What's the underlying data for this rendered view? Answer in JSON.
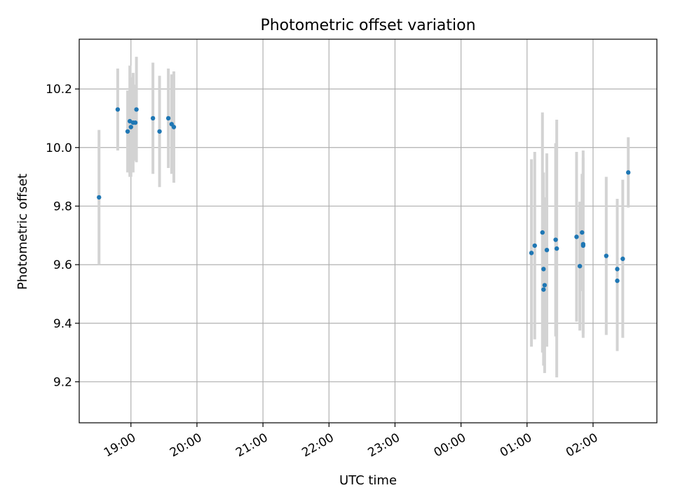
{
  "chart_data": {
    "type": "scatter",
    "title": "Photometric offset variation",
    "xlabel": "UTC time",
    "ylabel": "Photometric offset",
    "xlim": [
      "18:13",
      "02:58"
    ],
    "ylim": [
      9.06,
      10.37
    ],
    "x_ticks": [
      "19:00",
      "20:00",
      "21:00",
      "22:00",
      "23:00",
      "00:00",
      "01:00",
      "02:00"
    ],
    "y_ticks": [
      9.2,
      9.4,
      9.6,
      9.8,
      10.0,
      10.2
    ],
    "grid": true,
    "colors": {
      "point": "#1f77b4",
      "errorbar": "#d3d3d3",
      "grid": "#b0b0b0"
    },
    "series": [
      {
        "points": [
          {
            "x": "18:31",
            "y": 9.83,
            "err": 0.23
          },
          {
            "x": "18:48",
            "y": 10.13,
            "err": 0.14
          },
          {
            "x": "18:57",
            "y": 10.055,
            "err": 0.14
          },
          {
            "x": "18:59",
            "y": 10.09,
            "err": 0.19
          },
          {
            "x": "19:00",
            "y": 10.07,
            "err": 0.17
          },
          {
            "x": "19:02",
            "y": 10.085,
            "err": 0.17
          },
          {
            "x": "19:04",
            "y": 10.085,
            "err": 0.13
          },
          {
            "x": "19:05",
            "y": 10.13,
            "err": 0.18
          },
          {
            "x": "19:20",
            "y": 10.1,
            "err": 0.19
          },
          {
            "x": "19:26",
            "y": 10.055,
            "err": 0.19
          },
          {
            "x": "19:34",
            "y": 10.1,
            "err": 0.17
          },
          {
            "x": "19:37",
            "y": 10.08,
            "err": 0.17
          },
          {
            "x": "19:39",
            "y": 10.07,
            "err": 0.19
          },
          {
            "x": "01:04",
            "y": 9.64,
            "err": 0.32
          },
          {
            "x": "01:07",
            "y": 9.665,
            "err": 0.32
          },
          {
            "x": "01:14",
            "y": 9.71,
            "err": 0.41
          },
          {
            "x": "01:15",
            "y": 9.585,
            "err": 0.33
          },
          {
            "x": "01:15",
            "y": 9.515,
            "err": 0.2
          },
          {
            "x": "01:16",
            "y": 9.53,
            "err": 0.3
          },
          {
            "x": "01:18",
            "y": 9.65,
            "err": 0.33
          },
          {
            "x": "01:26",
            "y": 9.685,
            "err": 0.33
          },
          {
            "x": "01:27",
            "y": 9.655,
            "err": 0.44
          },
          {
            "x": "01:45",
            "y": 9.695,
            "err": 0.29
          },
          {
            "x": "01:48",
            "y": 9.595,
            "err": 0.22
          },
          {
            "x": "01:50",
            "y": 9.71,
            "err": 0.2
          },
          {
            "x": "01:51",
            "y": 9.67,
            "err": 0.32
          },
          {
            "x": "01:51",
            "y": 9.665,
            "err": 0.3
          },
          {
            "x": "02:12",
            "y": 9.63,
            "err": 0.27
          },
          {
            "x": "02:22",
            "y": 9.585,
            "err": 0.24
          },
          {
            "x": "02:22",
            "y": 9.545,
            "err": 0.24
          },
          {
            "x": "02:27",
            "y": 9.62,
            "err": 0.27
          },
          {
            "x": "02:32",
            "y": 9.915,
            "err": 0.12
          }
        ]
      }
    ]
  }
}
